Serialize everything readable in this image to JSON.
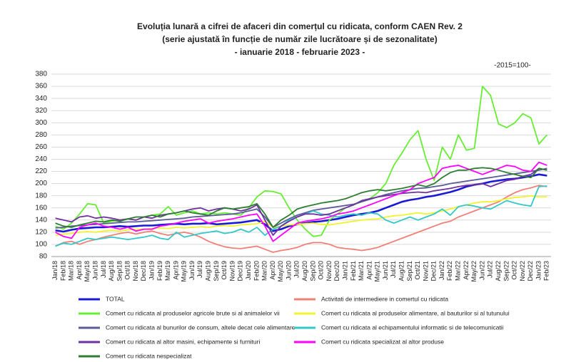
{
  "chart_data": {
    "type": "line",
    "title": "Evoluția lunară a cifrei de afaceri din comerțul cu ridicata, conform CAEN Rev. 2",
    "subtitle": "(serie ajustată în funcție de număr zile lucrătoare și de sezonalitate)",
    "annotations": [
      "- ianuarie 2018 - februarie 2023 -",
      "-2015=100-"
    ],
    "categories": [
      "Jan/18",
      "Feb/18",
      "Mar/18",
      "Apr/18",
      "May/18",
      "Jun/18",
      "Jul/18",
      "Aug/18",
      "Sep/18",
      "Oct/18",
      "Nov/18",
      "Dec/18",
      "Jan/19",
      "Feb/19",
      "Mar/19",
      "Apr/19",
      "May/19",
      "Jun/19",
      "Jul/19",
      "Aug/19",
      "Sep/19",
      "Oct/19",
      "Nov/19",
      "Dec/19",
      "Jan/20",
      "Feb/20",
      "Mar/20",
      "Apr/20",
      "May/20",
      "Jun/20",
      "Jul/20",
      "Aug/20",
      "Sep/20",
      "Oct/20",
      "Nov/20",
      "Dec/20",
      "Jan/21",
      "Feb/21",
      "Mar/21",
      "Apr/21",
      "May/21",
      "Jun/21",
      "Jul/21",
      "Aug/21",
      "Sep/21",
      "Oct/21",
      "Nov/21",
      "Dec/21",
      "Jan/22",
      "Feb/22",
      "Mar/22",
      "Apr/22",
      "May/22",
      "Jun/22",
      "Jul/22",
      "Aug/22",
      "Sep/22",
      "Oct/22",
      "Nov/22",
      "Dec/22",
      "Jan/23",
      "Feb/23"
    ],
    "ylim": [
      80,
      380
    ],
    "yticks": [
      80,
      100,
      120,
      140,
      160,
      180,
      200,
      220,
      240,
      260,
      280,
      300,
      320,
      340,
      360,
      380
    ],
    "grid": true,
    "series": [
      {
        "name": "TOTAL",
        "color": "#1a1ad6",
        "values": [
          123,
          121,
          124,
          126,
          127,
          128,
          128,
          129,
          130,
          129,
          130,
          131,
          131,
          132,
          133,
          134,
          133,
          134,
          134,
          135,
          133,
          134,
          135,
          136,
          138,
          140,
          133,
          122,
          125,
          130,
          133,
          135,
          137,
          138,
          140,
          142,
          145,
          148,
          150,
          152,
          155,
          160,
          165,
          170,
          173,
          175,
          178,
          180,
          183,
          186,
          190,
          195,
          198,
          200,
          203,
          205,
          207,
          208,
          210,
          212,
          215,
          213
        ]
      },
      {
        "name": "Activitati de intermediere in comertul cu ridicata",
        "color": "#f08078",
        "values": [
          97,
          103,
          105,
          100,
          105,
          108,
          112,
          115,
          118,
          120,
          117,
          120,
          122,
          118,
          115,
          118,
          120,
          117,
          112,
          105,
          100,
          96,
          94,
          93,
          95,
          97,
          92,
          87,
          90,
          92,
          95,
          100,
          103,
          103,
          100,
          95,
          93,
          92,
          90,
          92,
          95,
          100,
          105,
          110,
          115,
          120,
          125,
          130,
          135,
          138,
          145,
          150,
          155,
          160,
          165,
          170,
          178,
          185,
          190,
          193,
          197,
          195
        ]
      },
      {
        "name": "Comert cu ridicata al produselor agricole brute si al animalelor vii",
        "color": "#66ee33",
        "values": [
          130,
          125,
          135,
          150,
          167,
          165,
          135,
          138,
          140,
          142,
          140,
          145,
          148,
          150,
          162,
          148,
          152,
          155,
          150,
          152,
          150,
          152,
          150,
          148,
          160,
          178,
          188,
          187,
          183,
          160,
          140,
          125,
          113,
          115,
          140,
          150,
          160,
          165,
          170,
          175,
          185,
          200,
          230,
          250,
          272,
          287,
          240,
          205,
          260,
          240,
          280,
          255,
          258,
          360,
          345,
          298,
          292,
          300,
          315,
          308,
          265,
          280
        ]
      },
      {
        "name": "Comert cu ridicata al produselor alimentare, al bauturilor si al tutunului",
        "color": "#f2f230",
        "values": [
          115,
          117,
          118,
          120,
          121,
          120,
          122,
          123,
          122,
          124,
          125,
          125,
          126,
          127,
          126,
          128,
          127,
          128,
          129,
          128,
          130,
          131,
          130,
          132,
          133,
          134,
          138,
          128,
          130,
          132,
          133,
          134,
          135,
          133,
          132,
          134,
          136,
          138,
          140,
          141,
          142,
          145,
          147,
          148,
          150,
          152,
          150,
          152,
          155,
          158,
          162,
          165,
          168,
          170,
          170,
          172,
          175,
          177,
          178,
          180,
          178,
          178
        ]
      },
      {
        "name": "Comert cu ridicata al bunurilor de consum, altele decat cele alimentare",
        "color": "#5b5b9a",
        "values": [
          127,
          128,
          130,
          131,
          132,
          133,
          134,
          135,
          136,
          137,
          137,
          138,
          139,
          140,
          141,
          142,
          143,
          145,
          146,
          147,
          148,
          149,
          150,
          152,
          155,
          158,
          145,
          128,
          135,
          142,
          148,
          152,
          156,
          158,
          160,
          162,
          164,
          166,
          170,
          174,
          178,
          182,
          185,
          188,
          190,
          192,
          193,
          195,
          197,
          200,
          202,
          204,
          206,
          208,
          210,
          212,
          214,
          216,
          218,
          220,
          222,
          225
        ]
      },
      {
        "name": "Comert cu ridicata al echipamentului informatic si de telecomunicatii",
        "color": "#33c8c8",
        "values": [
          97,
          102,
          100,
          105,
          110,
          108,
          110,
          112,
          110,
          108,
          110,
          112,
          115,
          110,
          108,
          120,
          112,
          115,
          118,
          120,
          122,
          118,
          120,
          125,
          120,
          128,
          115,
          125,
          130,
          140,
          145,
          150,
          155,
          150,
          148,
          145,
          148,
          150,
          148,
          152,
          150,
          140,
          135,
          140,
          145,
          140,
          145,
          150,
          158,
          148,
          162,
          165,
          163,
          160,
          158,
          165,
          172,
          168,
          165,
          163,
          195,
          196
        ]
      },
      {
        "name": "Comert cu ridicata al altor masini, echipamente si furnituri",
        "color": "#7030a0",
        "values": [
          143,
          140,
          137,
          145,
          147,
          143,
          145,
          143,
          140,
          142,
          140,
          145,
          143,
          148,
          150,
          152,
          155,
          158,
          160,
          155,
          158,
          160,
          158,
          155,
          158,
          165,
          140,
          115,
          130,
          138,
          145,
          150,
          150,
          148,
          150,
          155,
          160,
          165,
          172,
          175,
          178,
          180,
          182,
          184,
          185,
          186,
          185,
          188,
          190,
          192,
          195,
          197,
          198,
          200,
          195,
          200,
          205,
          207,
          212,
          215,
          225,
          222
        ]
      },
      {
        "name": "Comert cu ridicata specializat al altor produse",
        "color": "#ff00ff",
        "values": [
          120,
          113,
          110,
          128,
          132,
          135,
          130,
          128,
          125,
          128,
          122,
          125,
          125,
          130,
          132,
          135,
          138,
          140,
          142,
          135,
          138,
          140,
          142,
          145,
          148,
          150,
          130,
          105,
          115,
          125,
          135,
          138,
          140,
          142,
          145,
          150,
          152,
          155,
          160,
          165,
          170,
          175,
          180,
          185,
          190,
          200,
          205,
          210,
          225,
          228,
          230,
          225,
          220,
          215,
          220,
          225,
          230,
          228,
          222,
          220,
          235,
          230
        ]
      },
      {
        "name": "Comert cu ridicata nespecializat",
        "color": "#2e7d32",
        "values": [
          135,
          130,
          128,
          132,
          135,
          138,
          137,
          140,
          138,
          142,
          145,
          145,
          148,
          145,
          150,
          152,
          155,
          152,
          150,
          148,
          155,
          160,
          158,
          160,
          162,
          167,
          150,
          128,
          140,
          148,
          158,
          162,
          165,
          168,
          170,
          172,
          175,
          180,
          185,
          188,
          190,
          188,
          190,
          192,
          195,
          198,
          195,
          200,
          210,
          218,
          222,
          222,
          225,
          226,
          225,
          222,
          218,
          215,
          212,
          210,
          225,
          222
        ]
      }
    ]
  }
}
